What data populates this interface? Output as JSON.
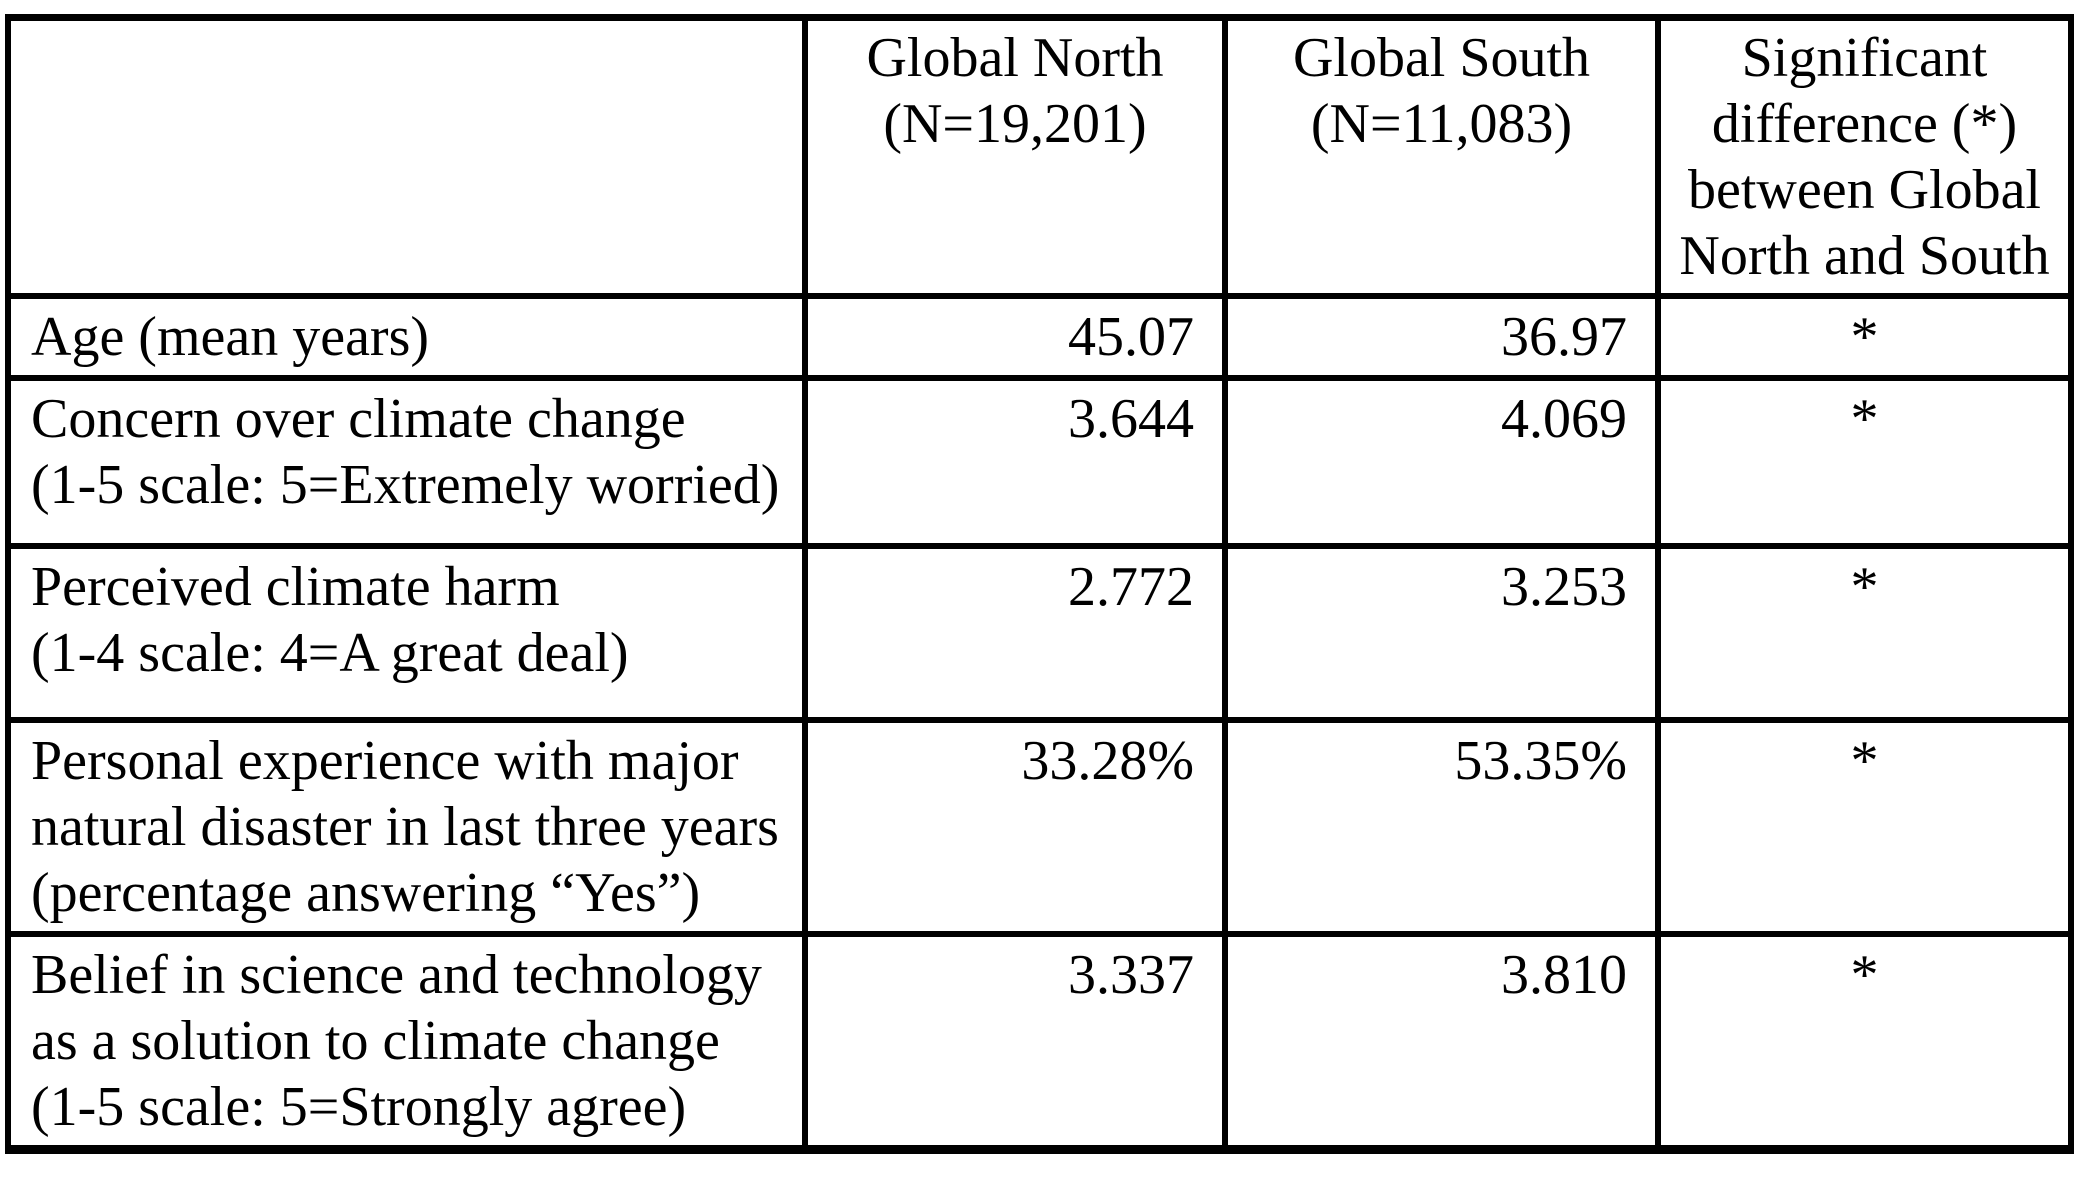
{
  "table": {
    "columns": [
      {
        "lines": [
          ""
        ]
      },
      {
        "lines": [
          "Global North",
          "(N=19,201)"
        ]
      },
      {
        "lines": [
          "Global South",
          "(N=11,083)"
        ]
      },
      {
        "lines": [
          "Significant",
          "difference (*)",
          "between Global",
          "North and South"
        ]
      }
    ],
    "rows": [
      {
        "label_lines": [
          "Age (mean years)"
        ],
        "north": "45.07",
        "south": "36.97",
        "sig": "*"
      },
      {
        "label_lines": [
          "Concern over climate change",
          "(1-5 scale: 5=Extremely worried)"
        ],
        "north": "3.644",
        "south": "4.069",
        "sig": "*"
      },
      {
        "label_lines": [
          "Perceived climate harm",
          "(1-4 scale: 4=A great deal)"
        ],
        "north": "2.772",
        "south": "3.253",
        "sig": "*"
      },
      {
        "label_lines": [
          "Personal experience with major",
          "natural disaster in last three years",
          "(percentage answering “Yes”)"
        ],
        "north": "33.28%",
        "south": "53.35%",
        "sig": "*"
      },
      {
        "label_lines": [
          "Belief in science and technology",
          "as a solution to climate change",
          "(1-5 scale: 5=Strongly agree)"
        ],
        "north": "3.337",
        "south": "3.810",
        "sig": "*"
      }
    ],
    "colors": {
      "border": "#000000",
      "text": "#000000",
      "background": "#ffffff"
    }
  }
}
